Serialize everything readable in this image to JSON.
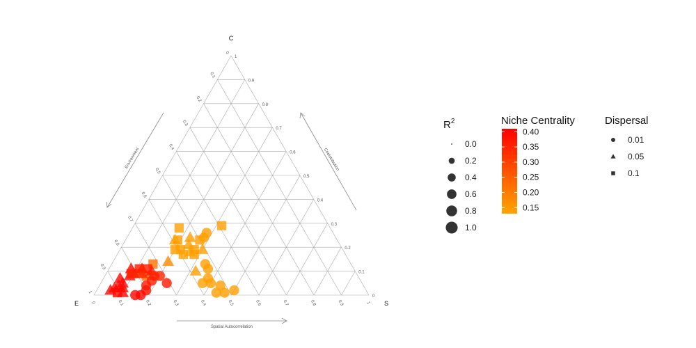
{
  "chart_data": {
    "type": "scatter",
    "subtype": "ternary",
    "corner_labels": {
      "top": "C",
      "left": "E",
      "right": "S"
    },
    "axis_titles": {
      "bottom": "Spatial Autocorrelation",
      "left": "Environment",
      "right": "Codistribution"
    },
    "ticks": [
      "0",
      "0.1",
      "0.2",
      "0.3",
      "0.4",
      "0.5",
      "0.6",
      "0.7",
      "0.8",
      "0.9",
      "1"
    ],
    "grid": true,
    "point_encoding": {
      "coordinates": "composition [S, C, E], each row sums to 1",
      "size": "R2",
      "color": "Niche Centrality",
      "shape": "Dispersal"
    },
    "points": [
      [
        0.2,
        0.19,
        0.61,
        0.6,
        0.14,
        "square"
      ],
      [
        0.22,
        0.19,
        0.59,
        0.6,
        0.14,
        "square"
      ],
      [
        0.24,
        0.17,
        0.59,
        0.6,
        0.14,
        "square"
      ],
      [
        0.26,
        0.18,
        0.56,
        0.6,
        0.14,
        "triangle"
      ],
      [
        0.24,
        0.21,
        0.55,
        0.6,
        0.14,
        "triangle"
      ],
      [
        0.23,
        0.24,
        0.53,
        0.6,
        0.14,
        "triangle"
      ],
      [
        0.27,
        0.23,
        0.5,
        0.6,
        0.14,
        "square"
      ],
      [
        0.3,
        0.19,
        0.51,
        0.6,
        0.14,
        "triangle"
      ],
      [
        0.27,
        0.19,
        0.54,
        0.6,
        0.14,
        "square"
      ],
      [
        0.28,
        0.17,
        0.55,
        0.6,
        0.14,
        "square"
      ],
      [
        0.34,
        0.13,
        0.53,
        0.6,
        0.14,
        "circle"
      ],
      [
        0.36,
        0.11,
        0.53,
        0.6,
        0.14,
        "circle"
      ],
      [
        0.38,
        0.07,
        0.55,
        0.6,
        0.14,
        "circle"
      ],
      [
        0.44,
        0.04,
        0.52,
        0.6,
        0.14,
        "circle"
      ],
      [
        0.32,
        0.29,
        0.39,
        0.6,
        0.14,
        "square"
      ],
      [
        0.17,
        0.28,
        0.55,
        0.6,
        0.14,
        "square"
      ],
      [
        0.19,
        0.23,
        0.58,
        0.6,
        0.14,
        "square"
      ],
      [
        0.18,
        0.23,
        0.59,
        0.6,
        0.14,
        "triangle"
      ],
      [
        0.28,
        0.26,
        0.46,
        0.6,
        0.14,
        "circle"
      ],
      [
        0.28,
        0.24,
        0.48,
        0.6,
        0.14,
        "circle"
      ],
      [
        0.32,
        0.1,
        0.58,
        0.6,
        0.14,
        "triangle"
      ],
      [
        0.37,
        0.05,
        0.58,
        0.6,
        0.14,
        "circle"
      ],
      [
        0.4,
        0.05,
        0.55,
        0.6,
        0.14,
        "circle"
      ],
      [
        0.44,
        0.01,
        0.55,
        0.6,
        0.14,
        "circle"
      ],
      [
        0.47,
        0.01,
        0.52,
        0.6,
        0.14,
        "circle"
      ],
      [
        0.5,
        0.02,
        0.48,
        0.6,
        0.14,
        "circle"
      ],
      [
        0.15,
        0.13,
        0.72,
        0.6,
        0.22,
        "square"
      ],
      [
        0.2,
        0.14,
        0.66,
        0.6,
        0.18,
        "triangle"
      ],
      [
        0.12,
        0.09,
        0.79,
        0.6,
        0.25,
        "square"
      ],
      [
        0.15,
        0.08,
        0.77,
        0.6,
        0.24,
        "square"
      ],
      [
        0.08,
        0.11,
        0.81,
        0.6,
        0.4,
        "triangle"
      ],
      [
        0.09,
        0.08,
        0.83,
        0.6,
        0.4,
        "triangle"
      ],
      [
        0.1,
        0.09,
        0.81,
        0.6,
        0.38,
        "triangle"
      ],
      [
        0.08,
        0.05,
        0.87,
        0.6,
        0.4,
        "triangle"
      ],
      [
        0.07,
        0.04,
        0.89,
        0.6,
        0.4,
        "triangle"
      ],
      [
        0.06,
        0.03,
        0.91,
        0.6,
        0.4,
        "triangle"
      ],
      [
        0.05,
        0.02,
        0.93,
        0.6,
        0.4,
        "triangle"
      ],
      [
        0.06,
        0.07,
        0.87,
        0.6,
        0.4,
        "triangle"
      ],
      [
        0.08,
        0.01,
        0.91,
        0.6,
        0.4,
        "square"
      ],
      [
        0.1,
        0.01,
        0.89,
        0.6,
        0.4,
        "triangle"
      ],
      [
        0.09,
        0.03,
        0.88,
        0.6,
        0.4,
        "triangle"
      ],
      [
        0.09,
        0.09,
        0.82,
        0.6,
        0.35,
        "square"
      ],
      [
        0.11,
        0.11,
        0.78,
        0.6,
        0.36,
        "square"
      ],
      [
        0.12,
        0.11,
        0.77,
        0.6,
        0.36,
        "triangle"
      ],
      [
        0.14,
        0.11,
        0.75,
        0.6,
        0.36,
        "square"
      ],
      [
        0.13,
        0.09,
        0.78,
        0.6,
        0.34,
        "triangle"
      ],
      [
        0.16,
        0.1,
        0.74,
        0.6,
        0.36,
        "triangle"
      ],
      [
        0.18,
        0.08,
        0.74,
        0.6,
        0.35,
        "circle"
      ],
      [
        0.2,
        0.08,
        0.72,
        0.6,
        0.35,
        "circle"
      ],
      [
        0.18,
        0.06,
        0.76,
        0.6,
        0.36,
        "circle"
      ],
      [
        0.17,
        0.04,
        0.79,
        0.6,
        0.37,
        "circle"
      ],
      [
        0.18,
        0.02,
        0.8,
        0.6,
        0.38,
        "circle"
      ],
      [
        0.24,
        0.05,
        0.71,
        0.6,
        0.37,
        "circle"
      ],
      [
        0.15,
        0.0,
        0.85,
        0.6,
        0.4,
        "circle"
      ],
      [
        0.17,
        0.0,
        0.83,
        0.6,
        0.4,
        "circle"
      ]
    ],
    "legends": {
      "r2": {
        "title_main": "R",
        "title_sup": "2",
        "labels": [
          "0.0",
          "0.2",
          "0.4",
          "0.6",
          "0.8",
          "1.0"
        ],
        "values": [
          0.0,
          0.2,
          0.4,
          0.6,
          0.8,
          1.0
        ]
      },
      "niche": {
        "title": "Niche Centrality",
        "labels": [
          "0.40",
          "0.35",
          "0.30",
          "0.25",
          "0.20",
          "0.15"
        ],
        "values": [
          0.4,
          0.35,
          0.3,
          0.25,
          0.2,
          0.15
        ],
        "range": [
          0.13,
          0.41
        ]
      },
      "dispersal": {
        "title": "Dispersal",
        "labels": [
          "0.01",
          "0.05",
          "0.1"
        ],
        "shapes": [
          "circle",
          "triangle",
          "square"
        ]
      }
    },
    "colors": {
      "low": "#FFA500",
      "high": "#FF0000",
      "grid": "#aaaaaa"
    }
  }
}
